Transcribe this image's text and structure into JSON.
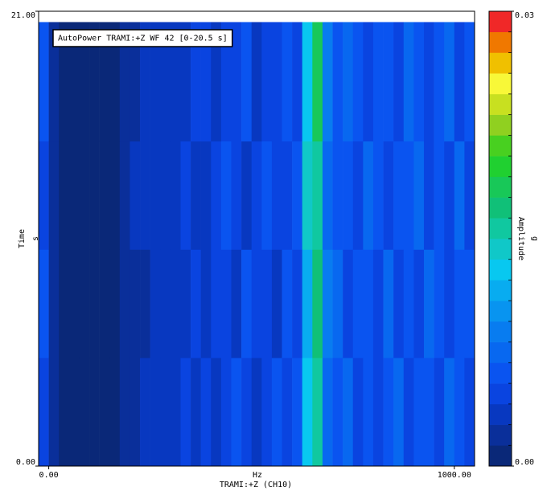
{
  "chart_data": {
    "type": "heatmap",
    "title": "AutoPower TRAMI:+Z WF 42 [0-20.5 s]",
    "x_label": "Hz",
    "x_sublabel": "TRAMI:+Z (CH10)",
    "y_label": "Time",
    "y_unit": "s",
    "colorbar_label": "Amplitude",
    "colorbar_unit": "g",
    "xlim": [
      -25,
      1050
    ],
    "xticks": [
      {
        "value": 0,
        "label": "0.00"
      },
      {
        "value": 1000,
        "label": "1000.00"
      }
    ],
    "ylim": [
      0,
      21
    ],
    "yticks": [
      {
        "value": 0,
        "label": "0.00"
      },
      {
        "value": 21,
        "label": "21.00"
      }
    ],
    "clim": [
      0,
      0.03
    ],
    "cticks": [
      {
        "value": 0,
        "label": "0.00"
      },
      {
        "value": 0.03,
        "label": "0.03"
      }
    ],
    "colors": [
      "#0a2878",
      "#0a2f9a",
      "#0838c0",
      "#0a44e0",
      "#0a54f0",
      "#0868f0",
      "#087cf0",
      "#0894f0",
      "#08acf0",
      "#08c8f0",
      "#10c8c8",
      "#10c8a0",
      "#10c078",
      "#18c858",
      "#20d030",
      "#48d020",
      "#90d020",
      "#c8e020",
      "#f8f838",
      "#f0c000",
      "#f07800",
      "#f02828"
    ],
    "x_bins": [
      -25,
      0,
      25,
      50,
      75,
      100,
      125,
      150,
      175,
      200,
      225,
      250,
      275,
      300,
      325,
      350,
      375,
      400,
      425,
      450,
      475,
      500,
      525,
      550,
      575,
      600,
      625,
      650,
      675,
      700,
      725,
      750,
      775,
      800,
      825,
      850,
      875,
      900,
      925,
      950,
      975,
      1000,
      1025,
      1050
    ],
    "y_bins": [
      0,
      5,
      10,
      15,
      20.5
    ],
    "z": [
      [
        0.005,
        0.002,
        0.001,
        0.001,
        0.001,
        0.001,
        0.001,
        0.001,
        0.002,
        0.002,
        0.003,
        0.003,
        0.004,
        0.004,
        0.005,
        0.004,
        0.005,
        0.004,
        0.005,
        0.006,
        0.005,
        0.004,
        0.005,
        0.006,
        0.005,
        0.006,
        0.013,
        0.016,
        0.008,
        0.006,
        0.007,
        0.005,
        0.006,
        0.005,
        0.006,
        0.007,
        0.005,
        0.006,
        0.006,
        0.005,
        0.007,
        0.006,
        0.005
      ],
      [
        0.006,
        0.002,
        0.001,
        0.001,
        0.001,
        0.001,
        0.001,
        0.001,
        0.002,
        0.002,
        0.002,
        0.003,
        0.003,
        0.004,
        0.004,
        0.005,
        0.004,
        0.005,
        0.005,
        0.004,
        0.006,
        0.005,
        0.005,
        0.004,
        0.006,
        0.005,
        0.012,
        0.017,
        0.009,
        0.007,
        0.005,
        0.006,
        0.006,
        0.005,
        0.007,
        0.005,
        0.006,
        0.005,
        0.007,
        0.006,
        0.005,
        0.006,
        0.006
      ],
      [
        0.005,
        0.002,
        0.001,
        0.001,
        0.001,
        0.001,
        0.001,
        0.001,
        0.002,
        0.003,
        0.003,
        0.003,
        0.004,
        0.003,
        0.005,
        0.004,
        0.004,
        0.005,
        0.006,
        0.005,
        0.004,
        0.005,
        0.006,
        0.005,
        0.005,
        0.006,
        0.014,
        0.015,
        0.008,
        0.006,
        0.006,
        0.005,
        0.007,
        0.006,
        0.005,
        0.006,
        0.006,
        0.007,
        0.005,
        0.006,
        0.005,
        0.007,
        0.005
      ],
      [
        0.006,
        0.002,
        0.001,
        0.001,
        0.001,
        0.001,
        0.001,
        0.001,
        0.002,
        0.002,
        0.003,
        0.004,
        0.003,
        0.004,
        0.004,
        0.005,
        0.005,
        0.004,
        0.005,
        0.005,
        0.006,
        0.004,
        0.005,
        0.005,
        0.006,
        0.005,
        0.013,
        0.018,
        0.009,
        0.006,
        0.007,
        0.006,
        0.005,
        0.006,
        0.006,
        0.005,
        0.007,
        0.006,
        0.005,
        0.006,
        0.007,
        0.005,
        0.006
      ]
    ]
  }
}
